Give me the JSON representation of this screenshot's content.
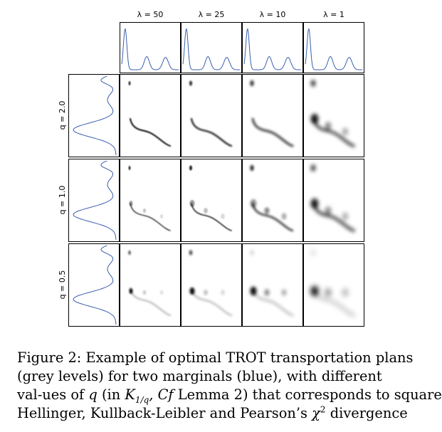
{
  "figure": {
    "column_labels": [
      "λ = 50",
      "λ = 25",
      "λ = 10",
      "λ = 1"
    ],
    "row_labels": [
      "q = 2.0",
      "q = 1.0",
      "q = 0.5"
    ],
    "marginal_color": "#3a5fb0",
    "plan_color": "#000000"
  },
  "caption": {
    "lead": "Figure 2: Example of optimal ",
    "trot": "TROT",
    "line1_rest": " transportation plans",
    "line2": "(grey levels) for two marginals (blue), with different",
    "line3_pre": "val-ues of ",
    "q": "q",
    "line3_mid": " (in ",
    "K": "K",
    "K_sub": "1/q",
    "line3_cf": ", Cf",
    "line3_post": " Lemma 2) that corresponds to square",
    "line4_pre": "Hellinger, Kullback-Leibler and Pearson’s ",
    "chi": "χ",
    "chi_sup": "2",
    "line4_post": " divergence"
  }
}
